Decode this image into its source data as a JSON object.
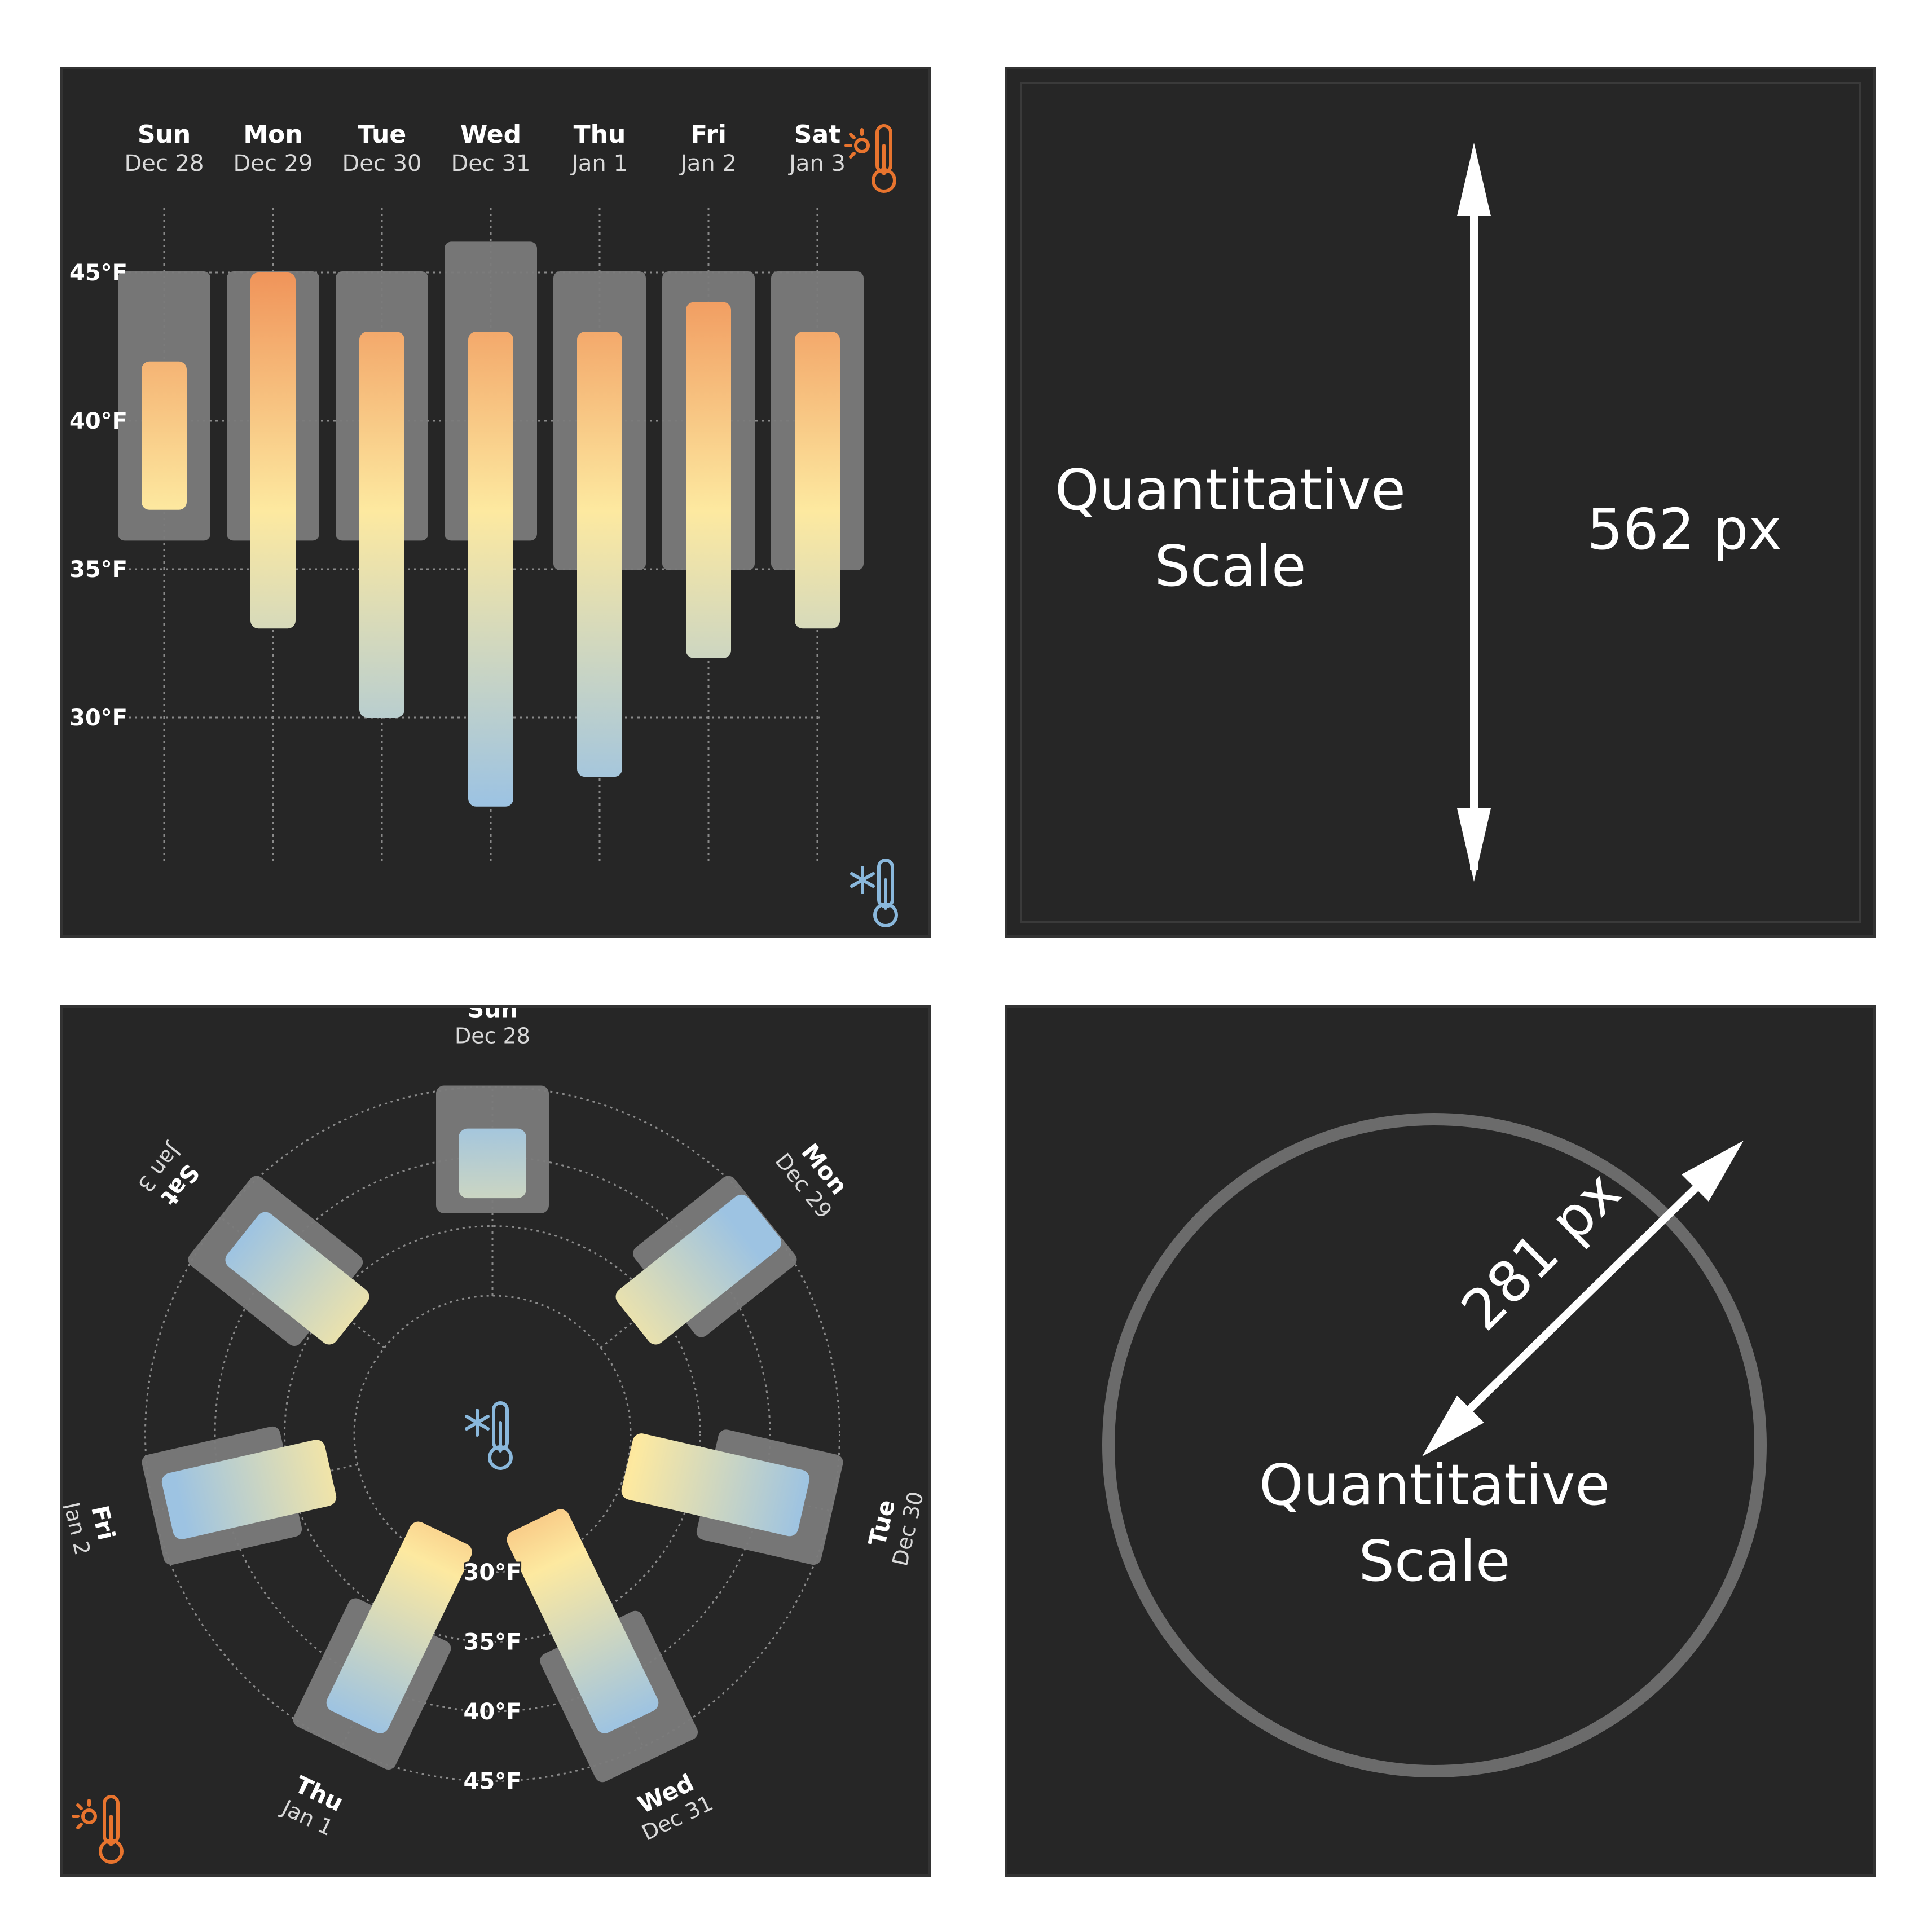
{
  "chart_data": [
    {
      "type": "bar",
      "layout": "vertical floating range bars",
      "days": [
        {
          "day": "Sun",
          "date": "Dec 28",
          "forecast_low": 36,
          "forecast_high": 45,
          "low": 37,
          "high": 42
        },
        {
          "day": "Mon",
          "date": "Dec 29",
          "forecast_low": 36,
          "forecast_high": 45,
          "low": 33,
          "high": 45
        },
        {
          "day": "Tue",
          "date": "Dec 30",
          "forecast_low": 36,
          "forecast_high": 45,
          "low": 30,
          "high": 43
        },
        {
          "day": "Wed",
          "date": "Dec 31",
          "forecast_low": 36,
          "forecast_high": 46,
          "low": 27,
          "high": 43
        },
        {
          "day": "Thu",
          "date": "Jan 1",
          "forecast_low": 35,
          "forecast_high": 45,
          "low": 28,
          "high": 43
        },
        {
          "day": "Fri",
          "date": "Jan 2",
          "forecast_low": 35,
          "forecast_high": 45,
          "low": 32,
          "high": 44
        },
        {
          "day": "Sat",
          "date": "Jan 3",
          "forecast_low": 35,
          "forecast_high": 45,
          "low": 33,
          "high": 43
        }
      ],
      "y_ticks": [
        "45°F",
        "40°F",
        "35°F",
        "30°F"
      ],
      "y_tick_values": [
        45,
        40,
        35,
        30
      ],
      "ylim": [
        27,
        45
      ],
      "grid": true,
      "color_warm": "#f0945a",
      "color_mid": "#fde9a0",
      "color_cold": "#9dc3e2",
      "range_box_color": "#7a7a7a",
      "icons": [
        "hot-thermometer-icon",
        "cold-thermometer-icon"
      ]
    },
    {
      "type": "bar",
      "layout": "radial floating range bars",
      "days_ref": "same as chart 1",
      "radial_ticks": [
        "30°F",
        "35°F",
        "40°F",
        "45°F"
      ],
      "radial_tick_values": [
        30,
        35,
        40,
        45
      ],
      "center_icon": "cold-thermometer-icon",
      "corner_icon": "hot-thermometer-icon"
    }
  ],
  "annotations": {
    "linear": {
      "label_line1": "Quantitative",
      "label_line2": "Scale",
      "length_label": "562 px"
    },
    "radial": {
      "label_line1": "Quantitative",
      "label_line2": "Scale",
      "radius_label": "281 px"
    }
  },
  "colors": {
    "panel_bg": "#262626",
    "grid": "#8a8a8a",
    "circle": "#6b6b6b",
    "text": "#ffffff",
    "hot_icon": "#e8742e",
    "cold_icon": "#8ab8dc"
  }
}
